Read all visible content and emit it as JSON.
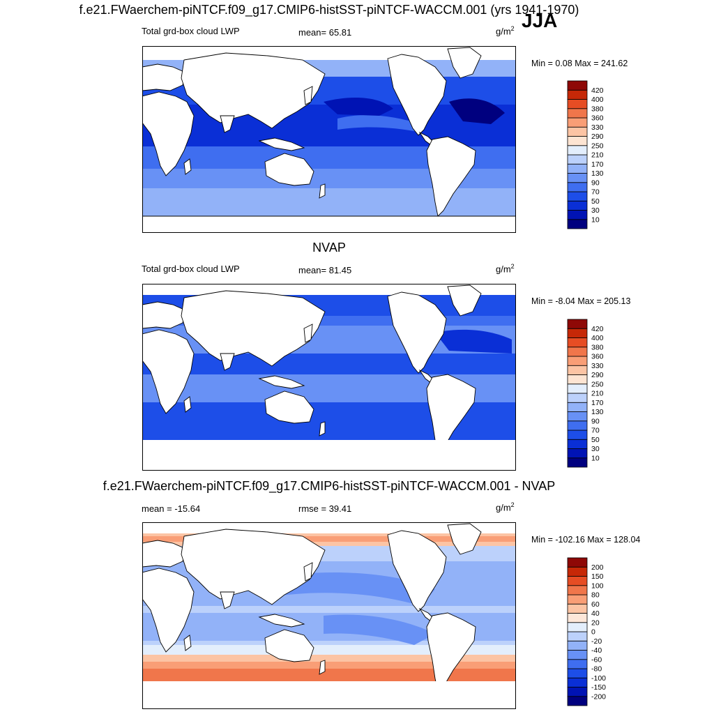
{
  "header": {
    "title": "f.e21.FWaerchem-piNTCF.f09_g17.CMIP6-histSST-piNTCF-WACCM.001 (yrs 1941-1970)",
    "season": "JJA"
  },
  "panels": [
    {
      "heading": "",
      "left_label": "Total grd-box cloud LWP",
      "center_label": "mean=  65.81",
      "units_base": "g/m",
      "units_exp": "2",
      "minmax": "Min =   0.08 Max = 241.62",
      "colorbar": {
        "colors": [
          "#00007f",
          "#0013b4",
          "#0a2fd6",
          "#1d4ee8",
          "#3f6ef0",
          "#6891f5",
          "#92b2f8",
          "#bcd1fb",
          "#e3eefc",
          "#fde4d2",
          "#fcc4a4",
          "#f99e76",
          "#f0764b",
          "#e64d24",
          "#c62807",
          "#8e0806"
        ],
        "labels": [
          "10",
          "30",
          "50",
          "70",
          "90",
          "130",
          "170",
          "210",
          "250",
          "290",
          "330",
          "360",
          "380",
          "400",
          "420"
        ]
      }
    },
    {
      "heading": "NVAP",
      "left_label": "Total grd-box cloud LWP",
      "center_label": "mean=  81.45",
      "units_base": "g/m",
      "units_exp": "2",
      "minmax": "Min =  -8.04 Max = 205.13",
      "colorbar": {
        "colors": [
          "#00007f",
          "#0013b4",
          "#0a2fd6",
          "#1d4ee8",
          "#3f6ef0",
          "#6891f5",
          "#92b2f8",
          "#bcd1fb",
          "#e3eefc",
          "#fde4d2",
          "#fcc4a4",
          "#f99e76",
          "#f0764b",
          "#e64d24",
          "#c62807",
          "#8e0806"
        ],
        "labels": [
          "10",
          "30",
          "50",
          "70",
          "90",
          "130",
          "170",
          "210",
          "250",
          "290",
          "330",
          "360",
          "380",
          "400",
          "420"
        ]
      }
    },
    {
      "heading": "f.e21.FWaerchem-piNTCF.f09_g17.CMIP6-histSST-piNTCF-WACCM.001 - NVAP",
      "left_label": "mean = -15.64",
      "center_label": "rmse =  39.41",
      "units_base": "g/m",
      "units_exp": "2",
      "minmax": "Min = -102.16 Max = 128.04",
      "colorbar": {
        "colors": [
          "#00007f",
          "#0013b4",
          "#0a2fd6",
          "#1d4ee8",
          "#3f6ef0",
          "#6891f5",
          "#92b2f8",
          "#bcd1fb",
          "#e3eefc",
          "#fde7d9",
          "#fcc4a4",
          "#f99e76",
          "#f0764b",
          "#e64d24",
          "#c62807",
          "#8e0806"
        ],
        "labels": [
          "-200",
          "-150",
          "-100",
          "-80",
          "-60",
          "-40",
          "-20",
          "0",
          "20",
          "40",
          "60",
          "80",
          "100",
          "150",
          "200"
        ]
      }
    }
  ],
  "map_colors": {
    "land": "#ffffff",
    "coast": "#000000",
    "deep_blue": "#0a2fd6",
    "mid_blue": "#3f6ef0",
    "light_blue": "#92b2f8",
    "pale_blue": "#bcd1fb",
    "navy": "#00007f",
    "pale_red": "#fcc4a4",
    "orange": "#f0764b",
    "red": "#c62807"
  }
}
